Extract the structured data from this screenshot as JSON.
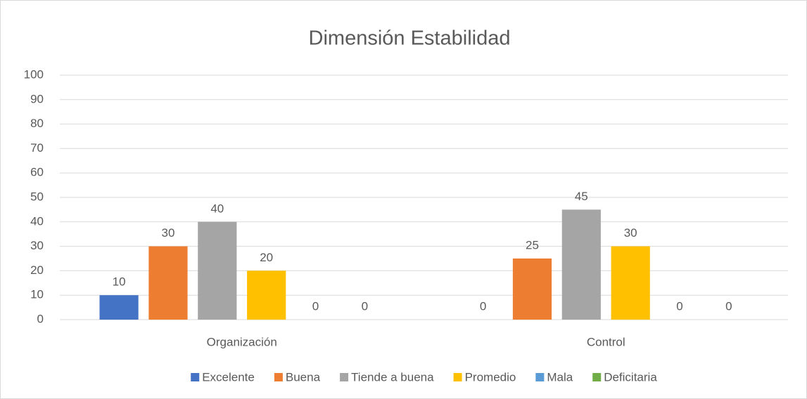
{
  "chart_data": {
    "type": "bar",
    "title": "Dimensión Estabilidad",
    "categories": [
      "Organización",
      "Control"
    ],
    "series": [
      {
        "name": "Excelente",
        "color": "#4472c4",
        "values": [
          10,
          0
        ]
      },
      {
        "name": "Buena",
        "color": "#ed7d31",
        "values": [
          30,
          25
        ]
      },
      {
        "name": "Tiende a buena",
        "color": "#a5a5a5",
        "values": [
          40,
          45
        ]
      },
      {
        "name": "Promedio",
        "color": "#ffc000",
        "values": [
          20,
          30
        ]
      },
      {
        "name": "Mala",
        "color": "#5b9bd5",
        "values": [
          0,
          0
        ]
      },
      {
        "name": "Deficitaria",
        "color": "#70ad47",
        "values": [
          0,
          0
        ]
      }
    ],
    "ylim": [
      0,
      100
    ],
    "yticks": [
      0,
      10,
      20,
      30,
      40,
      50,
      60,
      70,
      80,
      90,
      100
    ],
    "grid": true,
    "legend": "bottom"
  }
}
